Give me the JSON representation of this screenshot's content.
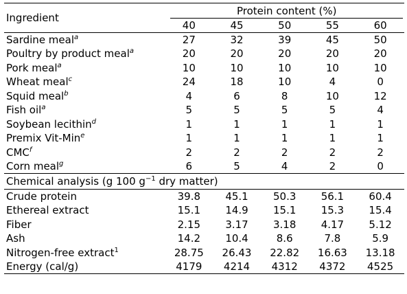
{
  "header": {
    "ingredient_label": "Ingredient",
    "protein_label": "Protein content (%)",
    "levels": [
      "40",
      "45",
      "50",
      "55",
      "60"
    ]
  },
  "ingredients": [
    {
      "name": "Sardine meal",
      "sup": "a",
      "values": [
        "27",
        "32",
        "39",
        "45",
        "50"
      ]
    },
    {
      "name": "Poultry by product meal",
      "sup": "a",
      "values": [
        "20",
        "20",
        "20",
        "20",
        "20"
      ]
    },
    {
      "name": "Pork meal",
      "sup": "a",
      "values": [
        "10",
        "10",
        "10",
        "10",
        "10"
      ]
    },
    {
      "name": "Wheat meal",
      "sup": "c",
      "values": [
        "24",
        "18",
        "10",
        "4",
        "0"
      ]
    },
    {
      "name": "Squid meal",
      "sup": "b",
      "values": [
        "4",
        "6",
        "8",
        "10",
        "12"
      ]
    },
    {
      "name": "Fish oil",
      "sup": "a",
      "values": [
        "5",
        "5",
        "5",
        "5",
        "4"
      ]
    },
    {
      "name": "Soybean lecithin",
      "sup": "d",
      "values": [
        "1",
        "1",
        "1",
        "1",
        "1"
      ]
    },
    {
      "name": "Premix Vit-Min",
      "sup": "e",
      "values": [
        "1",
        "1",
        "1",
        "1",
        "1"
      ]
    },
    {
      "name": "CMC",
      "sup": "f",
      "values": [
        "2",
        "2",
        "2",
        "2",
        "2"
      ]
    },
    {
      "name": "Corn meal",
      "sup": "g",
      "values": [
        "6",
        "5",
        "4",
        "2",
        "0"
      ]
    }
  ],
  "analysis": {
    "title_pre": "Chemical analysis (g 100 g",
    "title_sup": "−1",
    "title_post": " dry matter)",
    "rows": [
      {
        "name": "Crude protein",
        "sup": "",
        "values": [
          "39.8",
          "45.1",
          "50.3",
          "56.1",
          "60.4"
        ]
      },
      {
        "name": "Ethereal extract",
        "sup": "",
        "values": [
          "15.1",
          "14.9",
          "15.1",
          "15.3",
          "15.4"
        ]
      },
      {
        "name": "Fiber",
        "sup": "",
        "values": [
          "2.15",
          "3.17",
          "3.18",
          "4.17",
          "5.12"
        ]
      },
      {
        "name": "Ash",
        "sup": "",
        "values": [
          "14.2",
          "10.4",
          "8.6",
          "7.8",
          "5.9"
        ]
      },
      {
        "name": "Nitrogen-free extract",
        "sup": "1",
        "values": [
          "28.75",
          "26.43",
          "22.82",
          "16.63",
          "13.18"
        ]
      },
      {
        "name": "Energy (cal/g)",
        "sup": "",
        "values": [
          "4179",
          "4214",
          "4312",
          "4372",
          "4525"
        ]
      }
    ]
  }
}
